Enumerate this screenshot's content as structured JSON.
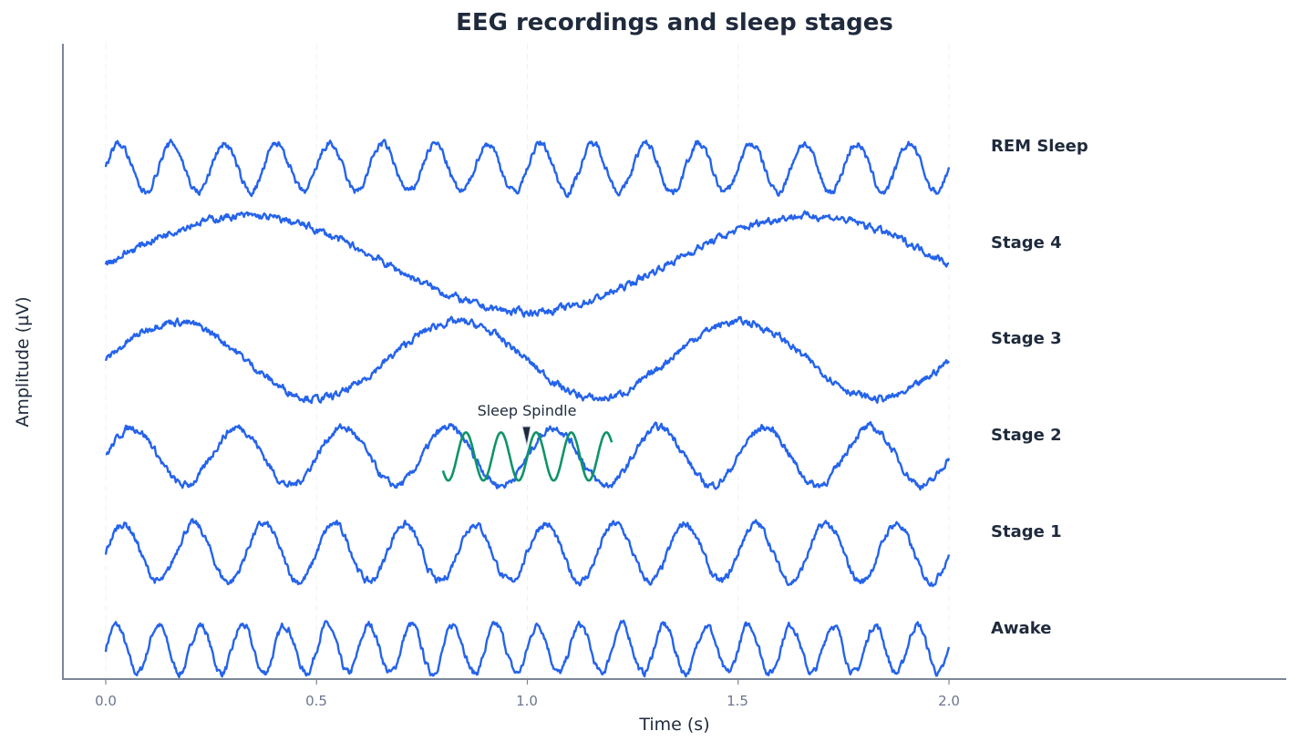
{
  "chart_data": {
    "type": "line",
    "title": "EEG recordings and sleep stages",
    "xlabel": "Time (s)",
    "ylabel": "Amplitude (µV)",
    "xlim": [
      -0.1,
      2.8
    ],
    "xticks": [
      "0.0",
      "0.5",
      "1.0",
      "1.5",
      "2.0"
    ],
    "xtick_values": [
      0.0,
      0.5,
      1.0,
      1.5,
      2.0
    ],
    "grid": "x-only dashed",
    "legend": "none (stage labels at right of each trace)",
    "colors": {
      "trace": "#2563eb",
      "spindle": "#0e9466",
      "axis": "#7b8797",
      "text": "#1f2a3c",
      "tick": "#6b7590"
    },
    "series": [
      {
        "name": "Awake",
        "freq_hz": 10,
        "amplitude": 0.5,
        "offset": 0,
        "t_start": 0.0,
        "t_end": 2.0
      },
      {
        "name": "Stage 1",
        "freq_hz": 6,
        "amplitude": 0.6,
        "offset": 2,
        "t_start": 0.0,
        "t_end": 2.0
      },
      {
        "name": "Stage 2",
        "freq_hz": 4,
        "amplitude": 0.6,
        "offset": 4,
        "t_start": 0.0,
        "t_end": 2.0
      },
      {
        "name": "Stage 3",
        "freq_hz": 1.5,
        "amplitude": 0.8,
        "offset": 6,
        "t_start": 0.0,
        "t_end": 2.0
      },
      {
        "name": "Stage 4",
        "freq_hz": 0.75,
        "amplitude": 1.0,
        "offset": 8,
        "t_start": 0.0,
        "t_end": 2.0
      },
      {
        "name": "REM Sleep",
        "freq_hz": 8,
        "amplitude": 0.5,
        "offset": 10,
        "t_start": 0.0,
        "t_end": 2.0
      }
    ],
    "spindle": {
      "name": "Sleep Spindle",
      "freq_hz": 12,
      "amplitude": 0.5,
      "offset": 4,
      "t_start": 0.8,
      "t_end": 1.2
    },
    "annotations": [
      {
        "text": "Sleep Spindle",
        "x": 1.0,
        "y_offset": 4,
        "arrow": true
      }
    ]
  },
  "labels": {
    "title": "EEG recordings and sleep stages",
    "xlabel": "Time (s)",
    "ylabel": "Amplitude (µV)",
    "annotation": "Sleep Spindle",
    "stages": [
      "REM Sleep",
      "Stage 4",
      "Stage 3",
      "Stage 2",
      "Stage 1",
      "Awake"
    ],
    "ticks": [
      "0.0",
      "0.5",
      "1.0",
      "1.5",
      "2.0"
    ]
  }
}
